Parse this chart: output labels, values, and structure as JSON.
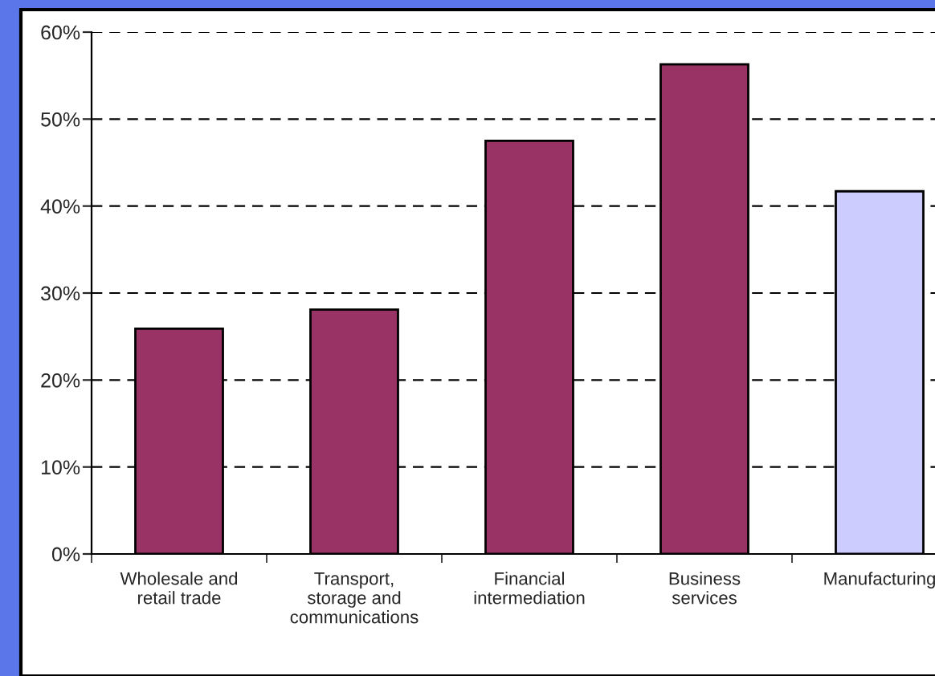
{
  "chart_data": {
    "type": "bar",
    "categories": [
      "Wholesale and\nretail trade",
      "Transport,\nstorage and\ncommunications",
      "Financial\nintermediation",
      "Business\nservices",
      "Manufacturing"
    ],
    "values": [
      25.9,
      28.1,
      47.5,
      56.3,
      41.7
    ],
    "colors": [
      "#993366",
      "#993366",
      "#993366",
      "#993366",
      "#ccccff"
    ],
    "ylim": [
      0,
      60
    ],
    "yticks": [
      {
        "value": 0,
        "label": "0%"
      },
      {
        "value": 10,
        "label": "10%"
      },
      {
        "value": 20,
        "label": "20%"
      },
      {
        "value": 30,
        "label": "30%"
      },
      {
        "value": 40,
        "label": "40%"
      },
      {
        "value": 50,
        "label": "50%"
      },
      {
        "value": 60,
        "label": "60%"
      }
    ],
    "grid": "y"
  }
}
